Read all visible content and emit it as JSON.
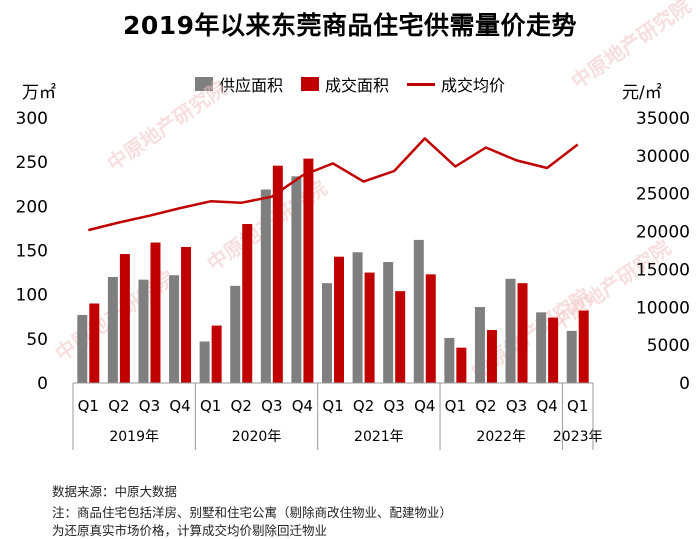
{
  "chart_data": {
    "type": "bar",
    "title": "2019年以来东莞商品住宅供需量价走势",
    "left_unit": "万㎡",
    "right_unit": "元/㎡",
    "ylim_left": [
      0,
      300
    ],
    "yticks_left": [
      0,
      50,
      100,
      150,
      200,
      250,
      300
    ],
    "ylim_right": [
      0,
      35000
    ],
    "yticks_right": [
      0,
      5000,
      10000,
      15000,
      20000,
      25000,
      30000,
      35000
    ],
    "categories": [
      "Q1",
      "Q2",
      "Q3",
      "Q4",
      "Q1",
      "Q2",
      "Q3",
      "Q4",
      "Q1",
      "Q2",
      "Q3",
      "Q4",
      "Q1",
      "Q2",
      "Q3",
      "Q4",
      "Q1"
    ],
    "years": [
      {
        "label": "2019年",
        "span": 4
      },
      {
        "label": "2020年",
        "span": 4
      },
      {
        "label": "2021年",
        "span": 4
      },
      {
        "label": "2022年",
        "span": 4
      },
      {
        "label": "2023年",
        "span": 1
      }
    ],
    "series": [
      {
        "name": "供应面积",
        "type": "bar",
        "axis": "left",
        "color": "#7f7f7f",
        "values": [
          77,
          120,
          117,
          122,
          47,
          110,
          219,
          234,
          113,
          148,
          137,
          162,
          51,
          86,
          118,
          80,
          59
        ]
      },
      {
        "name": "成交面积",
        "type": "bar",
        "axis": "left",
        "color": "#c00000",
        "values": [
          90,
          146,
          159,
          154,
          65,
          180,
          246,
          254,
          143,
          125,
          104,
          123,
          40,
          60,
          113,
          74,
          82
        ]
      },
      {
        "name": "成交均价",
        "type": "line",
        "axis": "right",
        "color": "#c00000",
        "values": [
          20200,
          21200,
          22100,
          23100,
          24000,
          23800,
          24600,
          27400,
          29000,
          26600,
          28000,
          32300,
          28600,
          31100,
          29400,
          28400,
          31500
        ]
      }
    ]
  },
  "notes": {
    "source": "数据来源：中原大数据",
    "note1": "注：商品住宅包括洋房、别墅和住宅公寓（剔除商改住物业、配建物业）",
    "note2": "为还原真实市场价格，计算成交均价剔除回迁物业"
  },
  "watermark": {
    "text": "中原地产研究院"
  }
}
